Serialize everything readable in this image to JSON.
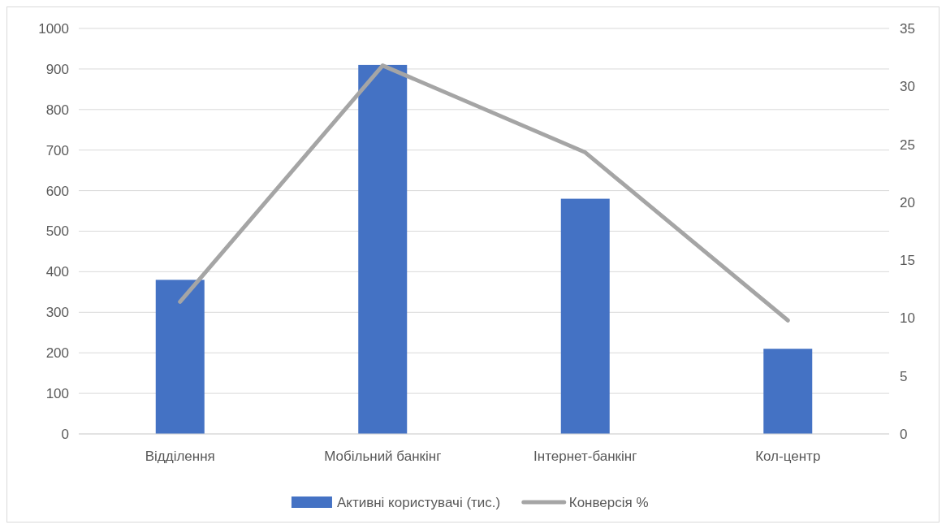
{
  "chart_data": {
    "type": "bar",
    "categories": [
      "Відділення",
      "Мобільний банкінг",
      "Інтернет-банкінг",
      "Кол-центр"
    ],
    "series": [
      {
        "name": "Активні користувачі (тис.)",
        "color": "#4472c4",
        "values": [
          380,
          910,
          580,
          210
        ]
      },
      {
        "name": "Конверсія %",
        "type": "line",
        "axis": "y2",
        "color": "#a5a5a5",
        "values": [
          11.4,
          31.8,
          24.3,
          9.8
        ]
      }
    ],
    "ylim": [
      0,
      1000
    ],
    "yticks": [
      0,
      100,
      200,
      300,
      400,
      500,
      600,
      700,
      800,
      900,
      1000
    ],
    "y2lim": [
      0,
      35
    ],
    "y2ticks": [
      0,
      5,
      10,
      15,
      20,
      25,
      30,
      35
    ],
    "grid": "y",
    "legend": "bottom",
    "marker": "none",
    "line_style": "solid"
  }
}
